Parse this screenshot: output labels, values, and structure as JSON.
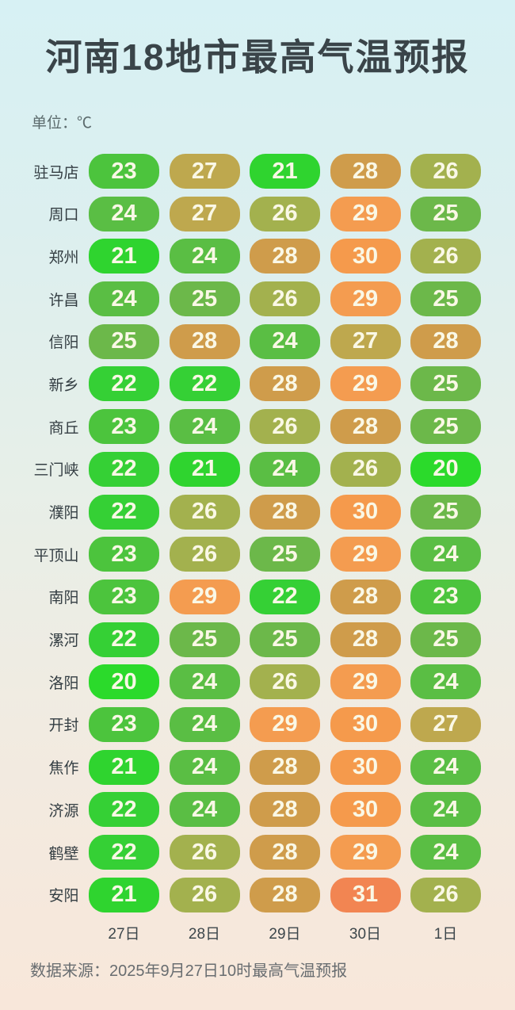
{
  "title": "河南18地市最高气温预报",
  "unit_label": "单位：℃",
  "footer": "数据来源：2025年9月27日10时最高气温预报",
  "colors": {
    "pill_text": "#faf8e6",
    "scale": {
      "20": "#2bda2b",
      "21": "#2fd42f",
      "22": "#35d035",
      "23": "#4cc43d",
      "24": "#5abe44",
      "25": "#6cb84a",
      "26": "#a3b14e",
      "27": "#bea84e",
      "28": "#cf9c4b",
      "29": "#f49c50",
      "30": "#f59a4c",
      "31": "#f28552"
    }
  },
  "chart_data": {
    "type": "heatmap",
    "title": "河南18地市最高气温预报",
    "unit": "℃",
    "x": [
      "27日",
      "28日",
      "29日",
      "30日",
      "1日"
    ],
    "rows": [
      {
        "city": "驻马店",
        "values": [
          23,
          27,
          21,
          28,
          26
        ]
      },
      {
        "city": "周口",
        "values": [
          24,
          27,
          26,
          29,
          25
        ]
      },
      {
        "city": "郑州",
        "values": [
          21,
          24,
          28,
          30,
          26
        ]
      },
      {
        "city": "许昌",
        "values": [
          24,
          25,
          26,
          29,
          25
        ]
      },
      {
        "city": "信阳",
        "values": [
          25,
          28,
          24,
          27,
          28
        ]
      },
      {
        "city": "新乡",
        "values": [
          22,
          22,
          28,
          29,
          25
        ]
      },
      {
        "city": "商丘",
        "values": [
          23,
          24,
          26,
          28,
          25
        ]
      },
      {
        "city": "三门峡",
        "values": [
          22,
          21,
          24,
          26,
          20
        ]
      },
      {
        "city": "濮阳",
        "values": [
          22,
          26,
          28,
          30,
          25
        ]
      },
      {
        "city": "平顶山",
        "values": [
          23,
          26,
          25,
          29,
          24
        ]
      },
      {
        "city": "南阳",
        "values": [
          23,
          29,
          22,
          28,
          23
        ]
      },
      {
        "city": "漯河",
        "values": [
          22,
          25,
          25,
          28,
          25
        ]
      },
      {
        "city": "洛阳",
        "values": [
          20,
          24,
          26,
          29,
          24
        ]
      },
      {
        "city": "开封",
        "values": [
          23,
          24,
          29,
          30,
          27
        ]
      },
      {
        "city": "焦作",
        "values": [
          21,
          24,
          28,
          30,
          24
        ]
      },
      {
        "city": "济源",
        "values": [
          22,
          24,
          28,
          30,
          24
        ]
      },
      {
        "city": "鹤壁",
        "values": [
          22,
          26,
          28,
          29,
          24
        ]
      },
      {
        "city": "安阳",
        "values": [
          21,
          26,
          28,
          31,
          26
        ]
      }
    ],
    "value_range": [
      20,
      31
    ],
    "legend": "none",
    "source_note": "数据来源：2025年9月27日10时最高气温预报"
  }
}
